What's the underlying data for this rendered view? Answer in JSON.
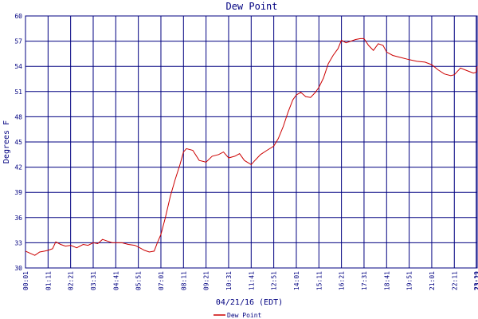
{
  "chart_data": {
    "type": "line",
    "title": "Dew Point",
    "xlabel": "04/21/16 (EDT)",
    "ylabel": "Degrees F",
    "ylim": [
      30,
      60
    ],
    "yticks": [
      "30",
      "33",
      "36",
      "39",
      "42",
      "45",
      "48",
      "51",
      "54",
      "57",
      "60"
    ],
    "xtick_labels": [
      "00:01",
      "01:11",
      "02:21",
      "03:31",
      "04:41",
      "05:51",
      "07:01",
      "08:11",
      "09:21",
      "10:31",
      "11:41",
      "12:51",
      "14:01",
      "15:11",
      "16:21",
      "17:31",
      "18:41",
      "19:51",
      "21:01",
      "22:11",
      "23:19",
      "23:22"
    ],
    "grid": true,
    "legend_position": "bottom-center",
    "colors": {
      "line": "#cc0000",
      "grid": "#000080",
      "text": "#000080"
    },
    "series": [
      {
        "name": "Dew Point",
        "x": [
          "00:01",
          "00:30",
          "00:45",
          "01:00",
          "01:11",
          "01:25",
          "01:35",
          "01:50",
          "02:05",
          "02:21",
          "02:40",
          "03:00",
          "03:15",
          "03:31",
          "03:45",
          "04:00",
          "04:15",
          "04:30",
          "04:41",
          "05:00",
          "05:20",
          "05:40",
          "05:51",
          "06:10",
          "06:25",
          "06:40",
          "06:50",
          "07:01",
          "07:15",
          "07:30",
          "07:45",
          "08:00",
          "08:11",
          "08:20",
          "08:40",
          "09:00",
          "09:21",
          "09:40",
          "10:00",
          "10:15",
          "10:31",
          "10:50",
          "11:05",
          "11:20",
          "11:41",
          "11:55",
          "12:10",
          "12:30",
          "12:51",
          "13:05",
          "13:20",
          "13:35",
          "13:50",
          "14:01",
          "14:15",
          "14:30",
          "14:45",
          "15:00",
          "15:11",
          "15:25",
          "15:40",
          "15:55",
          "16:10",
          "16:21",
          "16:35",
          "16:50",
          "17:05",
          "17:20",
          "17:31",
          "17:45",
          "18:00",
          "18:15",
          "18:30",
          "18:41",
          "19:00",
          "19:20",
          "19:40",
          "19:51",
          "20:15",
          "20:40",
          "21:01",
          "21:20",
          "21:40",
          "22:00",
          "22:11",
          "22:30",
          "22:50",
          "23:10",
          "23:19",
          "23:22"
        ],
        "values": [
          32.0,
          31.5,
          31.9,
          32.0,
          32.1,
          32.3,
          33.1,
          32.8,
          32.6,
          32.7,
          32.4,
          32.8,
          32.7,
          33.0,
          32.9,
          33.4,
          33.2,
          33.0,
          33.0,
          33.0,
          32.8,
          32.7,
          32.5,
          32.1,
          31.9,
          32.0,
          33.0,
          34.0,
          36.0,
          38.5,
          40.5,
          42.3,
          43.8,
          44.2,
          44.0,
          42.8,
          42.6,
          43.3,
          43.5,
          43.8,
          43.1,
          43.3,
          43.6,
          42.8,
          42.3,
          42.9,
          43.5,
          44.0,
          44.5,
          45.4,
          46.8,
          48.5,
          50.0,
          50.6,
          50.9,
          50.4,
          50.3,
          50.9,
          51.5,
          52.6,
          54.3,
          55.3,
          56.1,
          57.1,
          56.8,
          57.0,
          57.2,
          57.3,
          57.3,
          56.5,
          55.9,
          56.7,
          56.5,
          55.7,
          55.3,
          55.1,
          54.9,
          54.8,
          54.6,
          54.5,
          54.2,
          53.6,
          53.1,
          52.9,
          53.0,
          53.8,
          53.5,
          53.2,
          53.3,
          54.0
        ]
      }
    ]
  }
}
